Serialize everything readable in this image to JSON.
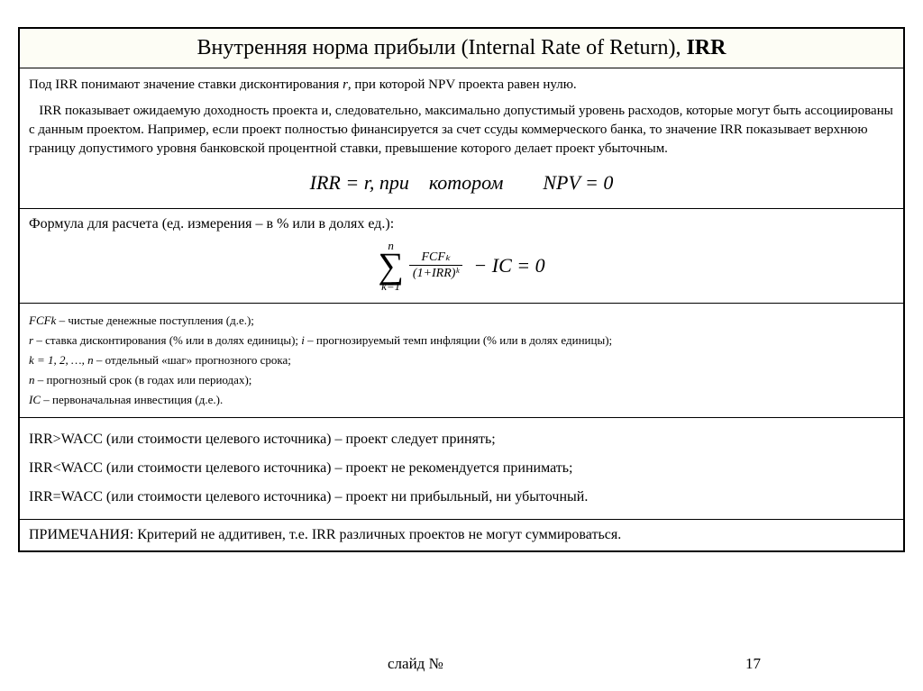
{
  "title": {
    "main": "Внутренняя норма прибыли (Internal Rate of Return), ",
    "bold": "IRR"
  },
  "description": {
    "p1_a": "Под IRR понимают значение ставки дисконтирования ",
    "p1_r": "r",
    "p1_b": ", при которой NPV проекта равен нулю.",
    "p2": "IRR показывает ожидаемую доходность проекта и, следовательно, максимально допустимый уровень расходов, которые могут быть ассоциированы с данным проектом. Например, если проект полностью финансируется за счет ссуды коммерческого банка, то значение IRR показывает верхнюю границу допустимого уровня банковской процентной ставки, превышение которого делает проект убыточным.",
    "formula1": "IRR = r, при котором  NPV = 0"
  },
  "formula": {
    "label": "Формула для расчета (ед. измерения – в % или в долях ед.):",
    "sigma_top": "n",
    "sigma_bot": "k=1",
    "frac_num": "FCFₖ",
    "frac_den": "(1+IRR)ᵏ",
    "tail": " − IC = 0"
  },
  "defs": {
    "l1a": "FCFk",
    "l1b": " – чистые денежные поступления (д.е.);",
    "l2a": "r",
    "l2b": " – ставка дисконтирования (% или в долях единицы);  ",
    "l2c": "i",
    "l2d": " – прогнозируемый темп инфляции (% или в долях единицы);",
    "l3a": "k = 1, 2, …, n",
    "l3b": " – отдельный «шаг» прогнозного срока;",
    "l4a": "n",
    "l4b": " – прогнозный срок (в годах или периодах);",
    "l5a": "IC",
    "l5b": " – первоначальная инвестиция (д.е.)."
  },
  "rules": {
    "r1": "IRR>WACC (или стоимости целевого источника) – проект следует принять;",
    "r2": "IRR<WACC (или стоимости целевого источника) – проект не рекомендуется принимать;",
    "r3": "IRR=WACC (или стоимости целевого источника) – проект ни прибыльный, ни убыточный."
  },
  "notes": "ПРИМЕЧАНИЯ: Критерий не аддитивен, т.е. IRR различных проектов не могут суммироваться.",
  "footer": {
    "label": "слайд №",
    "num": "17"
  },
  "style": {
    "border_color": "#000000",
    "bg_color": "#ffffff",
    "font_family": "Times New Roman"
  }
}
